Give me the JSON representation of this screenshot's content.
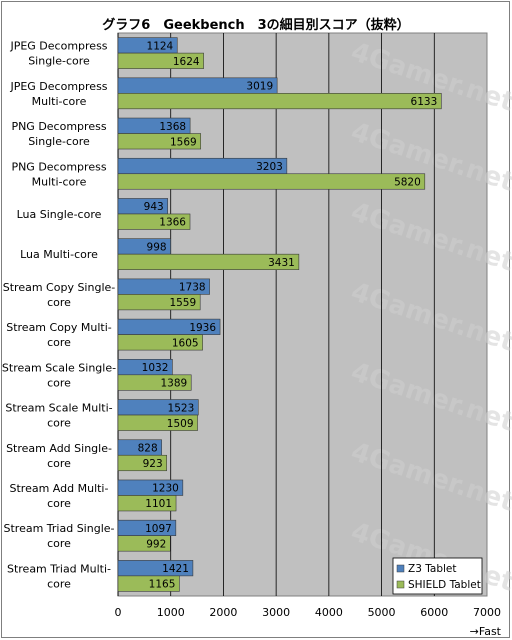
{
  "chart_data": {
    "type": "bar",
    "orientation": "horizontal",
    "title": "グラフ6　Geekbench　3の細目別スコア（抜粋）",
    "categories": [
      [
        "JPEG Decompress",
        "Single-core"
      ],
      [
        "JPEG Decompress",
        "Multi-core"
      ],
      [
        "PNG Decompress",
        "Single-core"
      ],
      [
        "PNG Decompress",
        "Multi-core"
      ],
      [
        "Lua Single-core"
      ],
      [
        "Lua Multi-core"
      ],
      [
        "Stream Copy Single-",
        "core"
      ],
      [
        "Stream Copy Multi-",
        "core"
      ],
      [
        "Stream Scale Single-",
        "core"
      ],
      [
        "Stream Scale Multi-",
        "core"
      ],
      [
        "Stream Add Single-",
        "core"
      ],
      [
        "Stream Add Multi-",
        "core"
      ],
      [
        "Stream Triad Single-",
        "core"
      ],
      [
        "Stream Triad Multi-",
        "core"
      ]
    ],
    "series": [
      {
        "name": "Z3 Tablet",
        "color": "#4f81bd",
        "values": [
          1124,
          3019,
          1368,
          3203,
          943,
          998,
          1738,
          1936,
          1032,
          1523,
          828,
          1230,
          1097,
          1421
        ]
      },
      {
        "name": "SHIELD Tablet",
        "color": "#9bbb59",
        "values": [
          1624,
          6133,
          1569,
          5820,
          1366,
          3431,
          1559,
          1605,
          1389,
          1509,
          923,
          1101,
          992,
          1165
        ]
      }
    ],
    "xlim": [
      0,
      7000
    ],
    "xticks": [
      "0",
      "1000",
      "2000",
      "3000",
      "4000",
      "5000",
      "6000",
      "7000"
    ],
    "xlabel": "→Fast",
    "grid": true,
    "legend": "bottom-right",
    "plot_background": "#c0c0c0",
    "watermark": "4Gamer.net"
  }
}
